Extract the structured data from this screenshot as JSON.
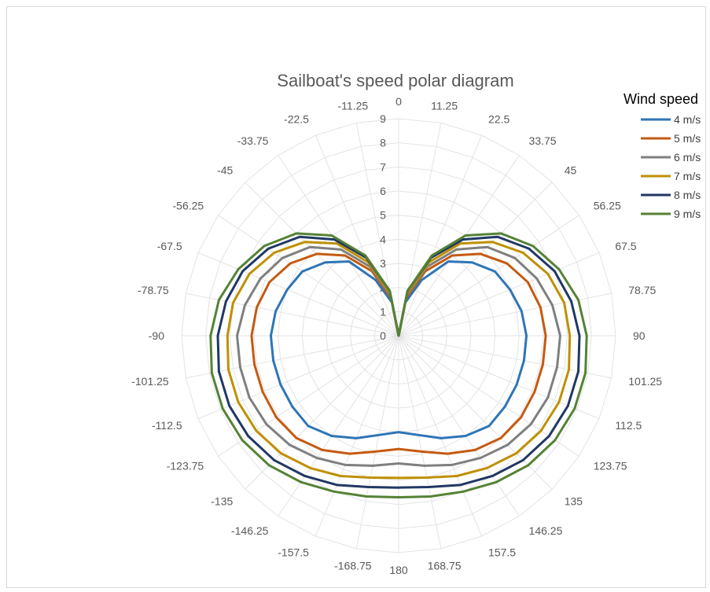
{
  "chart_data": {
    "type": "radar",
    "title": "Sailboat's speed polar diagram",
    "legend_title": "Wind speed",
    "legend_position": "right",
    "grid": true,
    "rlim": [
      0,
      9
    ],
    "radial_ticks": [
      "0",
      "1",
      "2",
      "3",
      "4",
      "5",
      "6",
      "7",
      "8",
      "9"
    ],
    "categories": [
      "0",
      "11.25",
      "22.5",
      "33.75",
      "45",
      "56.25",
      "67.5",
      "78.75",
      "90",
      "101.25",
      "112.5",
      "123.75",
      "135",
      "146.25",
      "157.5",
      "168.75",
      "180",
      "-168.75",
      "-157.5",
      "-146.25",
      "-135",
      "-123.75",
      "-112.5",
      "-101.25",
      "-90",
      "-78.75",
      "-67.5",
      "-56.25",
      "-45",
      "-33.75",
      "-22.5",
      "-11.25"
    ],
    "series": [
      {
        "name": "4 m/s",
        "color": "#2E75B6",
        "values": [
          0,
          1.4,
          2.5,
          3.7,
          4.3,
          4.8,
          5.0,
          5.2,
          5.3,
          5.3,
          5.3,
          5.3,
          5.3,
          5.0,
          4.6,
          4.2,
          4.0,
          4.2,
          4.6,
          5.0,
          5.3,
          5.3,
          5.3,
          5.3,
          5.3,
          5.2,
          5.0,
          4.8,
          4.3,
          3.7,
          2.5,
          1.4
        ]
      },
      {
        "name": "5 m/s",
        "color": "#C55A11",
        "values": [
          0,
          1.6,
          2.9,
          4.0,
          4.8,
          5.4,
          5.8,
          6.0,
          6.1,
          6.1,
          6.1,
          6.1,
          6.0,
          5.7,
          5.3,
          4.9,
          4.7,
          4.9,
          5.3,
          5.7,
          6.0,
          6.1,
          6.1,
          6.1,
          6.1,
          6.0,
          5.8,
          5.4,
          4.8,
          4.0,
          2.9,
          1.6
        ]
      },
      {
        "name": "6 m/s",
        "color": "#7F7F7F",
        "values": [
          0,
          1.7,
          3.1,
          4.3,
          5.2,
          5.8,
          6.2,
          6.5,
          6.7,
          6.7,
          6.7,
          6.6,
          6.4,
          6.1,
          5.8,
          5.5,
          5.3,
          5.5,
          5.8,
          6.1,
          6.4,
          6.6,
          6.7,
          6.7,
          6.7,
          6.5,
          6.2,
          5.8,
          5.2,
          4.3,
          3.1,
          1.7
        ]
      },
      {
        "name": "7 m/s",
        "color": "#BF9000",
        "values": [
          0,
          1.8,
          3.3,
          4.6,
          5.5,
          6.2,
          6.7,
          7.0,
          7.1,
          7.2,
          7.2,
          7.1,
          6.9,
          6.6,
          6.3,
          6.0,
          5.9,
          6.0,
          6.3,
          6.6,
          6.9,
          7.1,
          7.2,
          7.2,
          7.1,
          7.0,
          6.7,
          6.2,
          5.5,
          4.6,
          3.3,
          1.8
        ]
      },
      {
        "name": "8 m/s",
        "color": "#203864",
        "values": [
          0,
          1.9,
          3.5,
          4.8,
          5.8,
          6.5,
          7.0,
          7.3,
          7.5,
          7.6,
          7.6,
          7.5,
          7.3,
          7.0,
          6.7,
          6.4,
          6.3,
          6.4,
          6.7,
          7.0,
          7.3,
          7.5,
          7.6,
          7.6,
          7.5,
          7.3,
          7.0,
          6.5,
          5.8,
          4.8,
          3.5,
          1.9
        ]
      },
      {
        "name": "9 m/s",
        "color": "#548235",
        "values": [
          0,
          1.9,
          3.6,
          5.0,
          6.0,
          6.7,
          7.2,
          7.6,
          7.8,
          7.9,
          7.9,
          7.8,
          7.6,
          7.3,
          7.0,
          6.8,
          6.7,
          6.8,
          7.0,
          7.3,
          7.6,
          7.8,
          7.9,
          7.9,
          7.8,
          7.6,
          7.2,
          6.7,
          6.0,
          5.0,
          3.6,
          1.9
        ]
      }
    ]
  }
}
